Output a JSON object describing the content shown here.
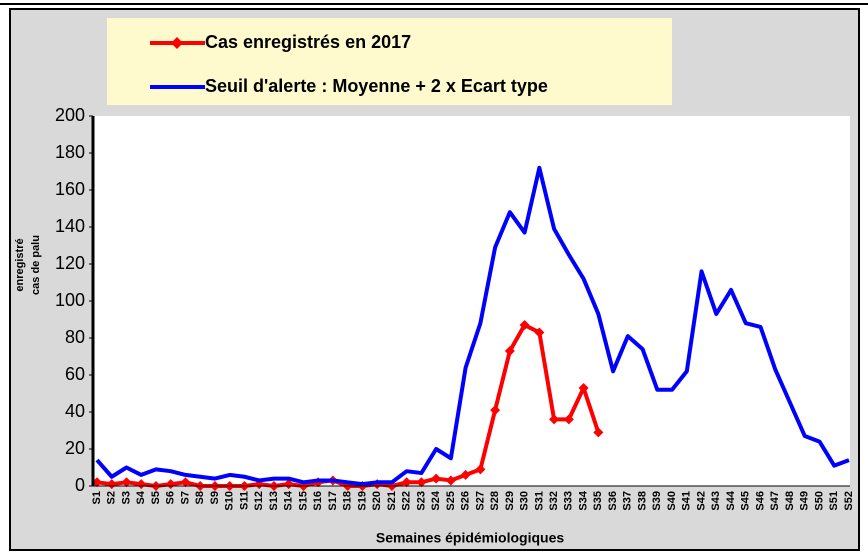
{
  "chart_data": {
    "type": "line",
    "ylabel": [
      "cas de palu",
      "enregistré"
    ],
    "xlabel": "Semaines épidémiologiques",
    "categories": [
      "S1",
      "S2",
      "S3",
      "S4",
      "S5",
      "S6",
      "S7",
      "S8",
      "S9",
      "S10",
      "S11",
      "S12",
      "S13",
      "S14",
      "S15",
      "S16",
      "S17",
      "S18",
      "S19",
      "S20",
      "S21",
      "S22",
      "S23",
      "S24",
      "S25",
      "S26",
      "S27",
      "S28",
      "S29",
      "S30",
      "S31",
      "S32",
      "S33",
      "S34",
      "S35",
      "S36",
      "S37",
      "S38",
      "S39",
      "S40",
      "S41",
      "S42",
      "S43",
      "S44",
      "S45",
      "S46",
      "S47",
      "S48",
      "S49",
      "S50",
      "S51",
      "S52"
    ],
    "series": [
      {
        "name": "Cas enregistrés en 2017",
        "color": "#ff0000",
        "marker": "diamond",
        "values": [
          2,
          1,
          2,
          1,
          0,
          1,
          2,
          0,
          0,
          0,
          0,
          1,
          0,
          1,
          0,
          2,
          3,
          0,
          0,
          1,
          0,
          2,
          2,
          4,
          3,
          6,
          9,
          41,
          73,
          87,
          83,
          36,
          36,
          53,
          29,
          null,
          null,
          null,
          null,
          null,
          null,
          null,
          null,
          null,
          null,
          null,
          null,
          null,
          null,
          null,
          null,
          null
        ]
      },
      {
        "name": "Seuil d'alerte : Moyenne + 2 x Ecart type",
        "color": "#0000ff",
        "values": [
          14,
          5,
          10,
          6,
          9,
          8,
          6,
          5,
          4,
          6,
          5,
          3,
          4,
          4,
          2,
          3,
          3,
          2,
          1,
          2,
          2,
          8,
          7,
          20,
          15,
          64,
          88,
          129,
          148,
          137,
          172,
          139,
          125,
          112,
          93,
          62,
          81,
          74,
          52,
          52,
          62,
          116,
          93,
          106,
          88,
          86,
          63,
          45,
          27,
          24,
          11,
          14
        ]
      }
    ],
    "ylim": [
      0,
      200
    ],
    "yticks": [
      0,
      20,
      40,
      60,
      80,
      100,
      120,
      140,
      160,
      180,
      200
    ]
  }
}
